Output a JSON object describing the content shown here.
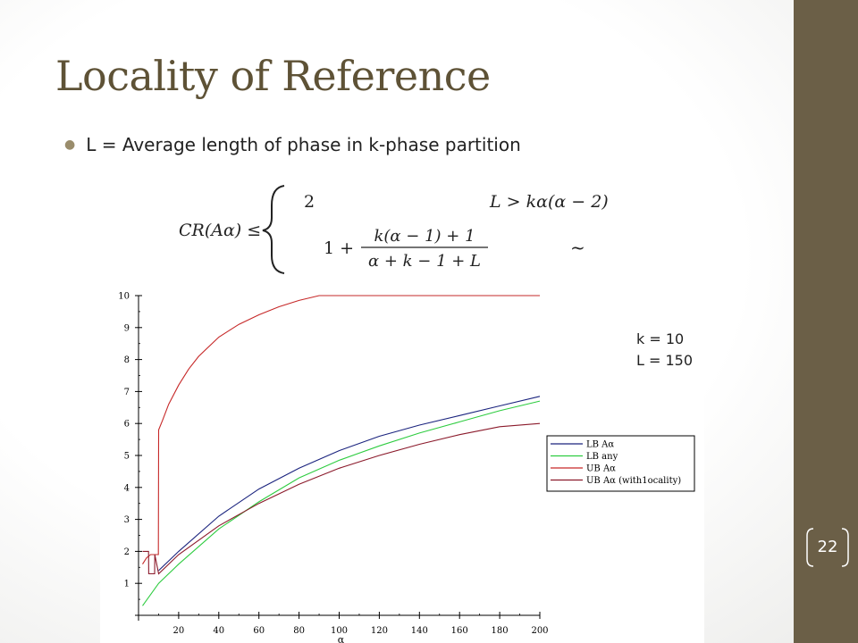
{
  "slide": {
    "title": "Locality of Reference",
    "bullet": "L = Average length of phase in k-phase partition",
    "page_number": "22",
    "params": [
      "k = 10",
      "L = 150"
    ],
    "colors": {
      "sidebar": "#6b5f47",
      "title": "#5e5236"
    }
  },
  "formula": {
    "lhs": "CR(Aα) ≤",
    "case1_value": "2",
    "case1_condition": "L > kα(α − 2)",
    "case2_prefix": "1 +",
    "case2_numerator": "k(α − 1) + 1",
    "case2_denominator": "α + k − 1 + L",
    "case2_condition": "~"
  },
  "chart_data": {
    "type": "line",
    "xlabel": "α",
    "ylabel": "",
    "xlim": [
      0,
      200
    ],
    "ylim": [
      0,
      10
    ],
    "x_ticks": [
      20,
      40,
      60,
      80,
      100,
      120,
      140,
      160,
      180,
      200
    ],
    "y_ticks": [
      1,
      2,
      3,
      4,
      5,
      6,
      7,
      8,
      9,
      10
    ],
    "legend_position": "right",
    "series": [
      {
        "name": "LB Aα",
        "color": "#1a237e",
        "x": [
          10,
          20,
          40,
          60,
          80,
          100,
          120,
          140,
          160,
          180,
          200
        ],
        "y": [
          1.4,
          2.0,
          3.1,
          3.95,
          4.6,
          5.15,
          5.6,
          5.95,
          6.25,
          6.55,
          6.85
        ]
      },
      {
        "name": "LB any",
        "color": "#2ecc40",
        "x": [
          2,
          10,
          20,
          40,
          60,
          80,
          100,
          120,
          140,
          160,
          180,
          200
        ],
        "y": [
          0.3,
          1.0,
          1.6,
          2.7,
          3.55,
          4.3,
          4.85,
          5.3,
          5.7,
          6.05,
          6.4,
          6.7
        ]
      },
      {
        "name": "UB Aα",
        "color": "#c62828",
        "x": [
          2,
          4,
          6,
          8,
          9.9,
          10,
          12,
          15,
          20,
          25,
          30,
          40,
          50,
          60,
          70,
          80,
          90,
          100,
          120,
          140,
          160,
          180,
          200
        ],
        "y": [
          1.6,
          1.8,
          1.9,
          1.9,
          1.9,
          5.8,
          6.1,
          6.6,
          7.2,
          7.7,
          8.1,
          8.7,
          9.1,
          9.4,
          9.65,
          9.85,
          10,
          10,
          10,
          10,
          10,
          10,
          10
        ]
      },
      {
        "name": "UB Aα (with1ocality)",
        "color": "#8b1a2b",
        "x": [
          2,
          5,
          5.1,
          8,
          8.1,
          10,
          20,
          40,
          60,
          80,
          100,
          120,
          140,
          160,
          180,
          200
        ],
        "y": [
          2.0,
          2.0,
          1.3,
          1.3,
          1.9,
          1.3,
          1.9,
          2.8,
          3.5,
          4.1,
          4.6,
          5.0,
          5.35,
          5.65,
          5.9,
          6.0
        ]
      }
    ]
  }
}
